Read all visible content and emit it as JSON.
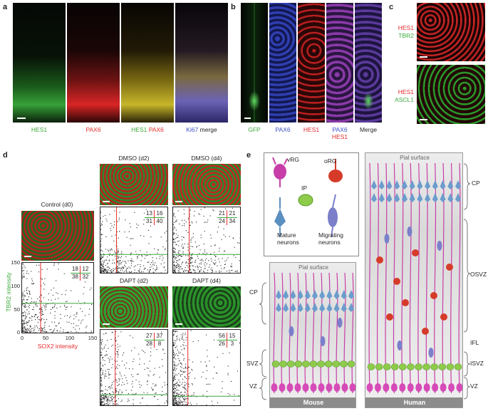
{
  "panel_a": {
    "label": "a",
    "captions": [
      {
        "parts": [
          {
            "text": "HES1",
            "color": "green"
          }
        ]
      },
      {
        "parts": [
          {
            "text": "PAX6",
            "color": "red"
          }
        ]
      },
      {
        "parts": [
          {
            "text": "HES1",
            "color": "green"
          },
          {
            "text": "PAX6",
            "color": "red"
          }
        ]
      },
      {
        "parts": [
          {
            "text": "Ki67",
            "color": "blue"
          },
          {
            "text": "merge",
            "color": "black"
          }
        ]
      }
    ]
  },
  "panel_b": {
    "label": "b",
    "captions": [
      {
        "parts": [
          {
            "text": "GFP",
            "color": "green"
          }
        ]
      },
      {
        "parts": [
          {
            "text": "PAX6",
            "color": "blue"
          }
        ]
      },
      {
        "parts": [
          {
            "text": "HES1",
            "color": "red"
          }
        ]
      },
      {
        "parts": [
          {
            "text": "PAX6",
            "color": "blue"
          },
          {
            "text": "HES1",
            "color": "red"
          }
        ]
      },
      {
        "parts": [
          {
            "text": "Merge",
            "color": "black"
          }
        ]
      }
    ]
  },
  "panel_c": {
    "label": "c",
    "top": {
      "line1": "HES1",
      "line2": "TBR2"
    },
    "bottom": {
      "line1": "HES1",
      "line2": "ASCL1"
    }
  },
  "panel_d": {
    "label": "d",
    "control_title": "Control (d0)",
    "dmso_d2_title": "DMSO (d2)",
    "dmso_d4_title": "DMSO (d4)",
    "dapt_d2_title": "DAPT (d2)",
    "dapt_d4_title": "DAPT (d4)",
    "y_axis_label": "TBR2 intensity",
    "x_axis_label": "SOX2 intensity",
    "x_ticks": [
      "0",
      "50",
      "100",
      "150"
    ],
    "y_ticks": [
      "0",
      "50",
      "100",
      "150"
    ]
  },
  "chart_data": [
    {
      "type": "scatter",
      "title": "Control (d0)",
      "xlabel": "SOX2 intensity",
      "ylabel": "TBR2 intensity",
      "xlim": [
        0,
        150
      ],
      "ylim": [
        0,
        150
      ],
      "quadrants": {
        "top_left": 18,
        "top_right": 12,
        "bottom_left": 38,
        "bottom_right": 32
      }
    },
    {
      "type": "scatter",
      "title": "DMSO (d2)",
      "quadrants": {
        "top_left": 13,
        "top_right": 16,
        "bottom_left": 31,
        "bottom_right": 40
      }
    },
    {
      "type": "scatter",
      "title": "DMSO (d4)",
      "quadrants": {
        "top_left": 21,
        "top_right": 21,
        "bottom_left": 24,
        "bottom_right": 34
      }
    },
    {
      "type": "scatter",
      "title": "DAPT (d2)",
      "quadrants": {
        "top_left": 27,
        "top_right": 37,
        "bottom_left": 28,
        "bottom_right": 8
      }
    },
    {
      "type": "scatter",
      "title": "DAPT (d4)",
      "quadrants": {
        "top_left": 56,
        "top_right": 15,
        "bottom_left": 26,
        "bottom_right": 3
      }
    }
  ],
  "panel_e": {
    "label": "e",
    "legend": {
      "vrg": "vRG",
      "org": "oRG",
      "ip": "IP",
      "mature": "Mature neurons",
      "migrating": "Migrating neurons"
    },
    "mouse": {
      "pial": "Pial surface",
      "footer": "Mouse",
      "zones": [
        "CP",
        "SVZ",
        "VZ"
      ]
    },
    "human": {
      "pial": "Pial surface",
      "footer": "Human",
      "zones": [
        "CP",
        "OSVZ",
        "IFL",
        "ISVZ",
        "VZ"
      ]
    }
  },
  "colors": {
    "green": "#3aa83a",
    "red": "#e52b2b",
    "blue": "#3b4fc4",
    "black": "#231f20"
  }
}
